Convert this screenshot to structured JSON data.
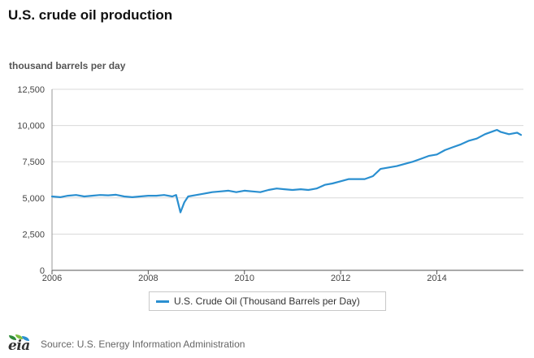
{
  "chart_data": {
    "type": "line",
    "title": "U.S. crude oil production",
    "ylabel": "thousand barrels per day",
    "xlabel": "",
    "xlim": [
      2006.0,
      2015.8
    ],
    "ylim": [
      0,
      12500
    ],
    "yticks": [
      0,
      2500,
      5000,
      7500,
      10000,
      12500
    ],
    "ytick_labels": [
      "0",
      "2,500",
      "5,000",
      "7,500",
      "10,000",
      "12,500"
    ],
    "xticks": [
      2006,
      2008,
      2010,
      2012,
      2014
    ],
    "xtick_labels": [
      "2006",
      "2008",
      "2010",
      "2012",
      "2014"
    ],
    "grid": true,
    "legend_position": "bottom",
    "series": [
      {
        "name": "U.S. Crude Oil (Thousand Barrels per Day)",
        "color": "#2a8fd0",
        "x": [
          2006.0,
          2006.17,
          2006.33,
          2006.5,
          2006.67,
          2006.83,
          2007.0,
          2007.17,
          2007.33,
          2007.5,
          2007.67,
          2007.83,
          2008.0,
          2008.17,
          2008.33,
          2008.5,
          2008.58,
          2008.67,
          2008.75,
          2008.83,
          2009.0,
          2009.17,
          2009.33,
          2009.5,
          2009.67,
          2009.83,
          2010.0,
          2010.17,
          2010.33,
          2010.5,
          2010.67,
          2010.83,
          2011.0,
          2011.17,
          2011.33,
          2011.5,
          2011.67,
          2011.83,
          2012.0,
          2012.17,
          2012.33,
          2012.5,
          2012.67,
          2012.83,
          2013.0,
          2013.17,
          2013.33,
          2013.5,
          2013.67,
          2013.83,
          2014.0,
          2014.17,
          2014.33,
          2014.5,
          2014.67,
          2014.83,
          2015.0,
          2015.17,
          2015.25,
          2015.33,
          2015.5,
          2015.58,
          2015.67,
          2015.75
        ],
        "values": [
          5100,
          5050,
          5150,
          5200,
          5100,
          5150,
          5200,
          5180,
          5220,
          5100,
          5050,
          5100,
          5150,
          5150,
          5200,
          5100,
          5200,
          4000,
          4700,
          5100,
          5200,
          5300,
          5400,
          5450,
          5500,
          5400,
          5500,
          5450,
          5400,
          5550,
          5650,
          5600,
          5550,
          5600,
          5550,
          5650,
          5900,
          6000,
          6150,
          6300,
          6300,
          6300,
          6500,
          7000,
          7100,
          7200,
          7350,
          7500,
          7700,
          7900,
          8000,
          8300,
          8500,
          8700,
          8950,
          9100,
          9400,
          9600,
          9700,
          9550,
          9400,
          9450,
          9500,
          9350
        ]
      }
    ]
  },
  "footer": {
    "logo_text": "eia",
    "logo_leaf_colors": [
      "#2e8b3a",
      "#7cbf3f",
      "#2a8fd0"
    ],
    "source": "Source: U.S. Energy Information Administration"
  }
}
